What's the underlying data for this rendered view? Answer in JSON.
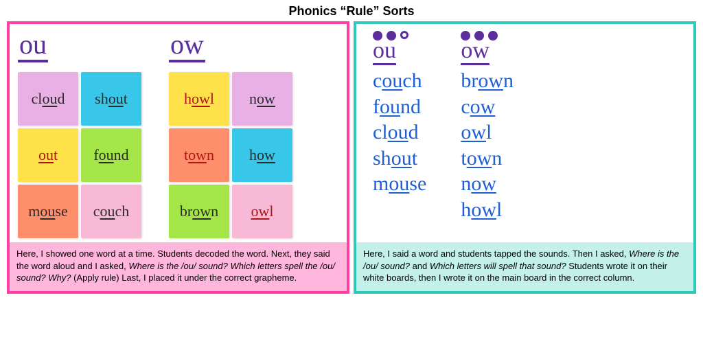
{
  "title": "Phonics “Rule” Sorts",
  "left_panel": {
    "border_color": "#ff3fa4",
    "caption_bg": "#ffb6dc",
    "columns": [
      {
        "header": "ou",
        "stickies": [
          {
            "word": "cloud",
            "ul_start": 2,
            "ul_len": 2,
            "bg": "#e9b0e6",
            "ink": "#2b2b2b"
          },
          {
            "word": "shout",
            "ul_start": 2,
            "ul_len": 2,
            "bg": "#38c7e8",
            "ink": "#2b2b2b"
          },
          {
            "word": "out",
            "ul_start": 0,
            "ul_len": 2,
            "bg": "#ffe24a",
            "ink": "#b01414"
          },
          {
            "word": "found",
            "ul_start": 1,
            "ul_len": 2,
            "bg": "#a4e647",
            "ink": "#2b2b2b"
          },
          {
            "word": "mouse",
            "ul_start": 1,
            "ul_len": 2,
            "bg": "#ff8f6b",
            "ink": "#2b2b2b"
          },
          {
            "word": "couch",
            "ul_start": 1,
            "ul_len": 2,
            "bg": "#f7b9d6",
            "ink": "#2b2b2b"
          }
        ]
      },
      {
        "header": "ow",
        "stickies": [
          {
            "word": "howl",
            "ul_start": 1,
            "ul_len": 2,
            "bg": "#ffe24a",
            "ink": "#b01414"
          },
          {
            "word": "now",
            "ul_start": 1,
            "ul_len": 2,
            "bg": "#e9b0e6",
            "ink": "#2b2b2b"
          },
          {
            "word": "town",
            "ul_start": 1,
            "ul_len": 2,
            "bg": "#ff8f6b",
            "ink": "#b01414"
          },
          {
            "word": "how",
            "ul_start": 1,
            "ul_len": 2,
            "bg": "#38c7e8",
            "ink": "#2b2b2b"
          },
          {
            "word": "brown",
            "ul_start": 2,
            "ul_len": 2,
            "bg": "#a4e647",
            "ink": "#2b2b2b"
          },
          {
            "word": "owl",
            "ul_start": 0,
            "ul_len": 2,
            "bg": "#f7b9d6",
            "ink": "#b01414"
          }
        ]
      }
    ],
    "caption_pre": "Here, I showed one word at a time. Students decoded the word. Next, they said the word aloud and I asked, ",
    "caption_em": "Where is the /ou/ sound?  Which letters spell the /ou/ sound? Why?",
    "caption_post": " (Apply rule) Last, I placed it under the correct grapheme."
  },
  "right_panel": {
    "border_color": "#2ec9b8",
    "caption_bg": "#c3f0e9",
    "header_color": "#5a2e9e",
    "word_color": "#1e5fd6",
    "columns": [
      {
        "header": "ou",
        "dots": [
          "solid",
          "solid",
          "hollow"
        ],
        "words": [
          {
            "word": "couch",
            "ul_start": 1,
            "ul_len": 2
          },
          {
            "word": "found",
            "ul_start": 1,
            "ul_len": 2
          },
          {
            "word": "cloud",
            "ul_start": 2,
            "ul_len": 2
          },
          {
            "word": "shout",
            "ul_start": 2,
            "ul_len": 2
          },
          {
            "word": "mouse",
            "ul_start": 1,
            "ul_len": 2
          }
        ]
      },
      {
        "header": "ow",
        "dots": [
          "solid",
          "solid",
          "solid"
        ],
        "words": [
          {
            "word": "brown",
            "ul_start": 2,
            "ul_len": 2
          },
          {
            "word": "cow",
            "ul_start": 1,
            "ul_len": 2
          },
          {
            "word": "owl",
            "ul_start": 0,
            "ul_len": 2
          },
          {
            "word": "town",
            "ul_start": 1,
            "ul_len": 2
          },
          {
            "word": "now",
            "ul_start": 1,
            "ul_len": 2
          },
          {
            "word": "howl",
            "ul_start": 1,
            "ul_len": 2
          }
        ]
      }
    ],
    "caption_pre": "Here, I said a word and students tapped the sounds. Then I asked, ",
    "caption_em1": "Where is the /ou/ sound?",
    "caption_mid": "  and ",
    "caption_em2": "Which letters will spell that sound?",
    "caption_post": " Students wrote it on their white boards, then I wrote it on the main board in the correct column."
  }
}
